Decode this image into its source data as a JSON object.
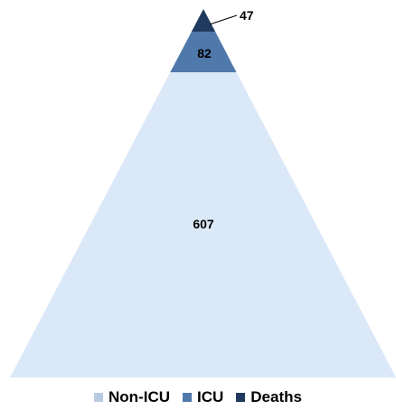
{
  "chart_data": {
    "type": "pyramid",
    "segments": [
      {
        "name": "Non-ICU",
        "value": 607,
        "label": "607",
        "color": "#dbe8f8"
      },
      {
        "name": "ICU",
        "value": 82,
        "label": "82",
        "color": "#4f79ab"
      },
      {
        "name": "Deaths",
        "value": 47,
        "label": "47",
        "color": "#1f3a5e"
      }
    ],
    "legend": {
      "placement": "bottom",
      "items": [
        {
          "name": "Non-ICU",
          "color": "#b9cbe3"
        },
        {
          "name": "ICU",
          "color": "#4f79ab"
        },
        {
          "name": "Deaths",
          "color": "#1f3a5e"
        }
      ]
    }
  }
}
